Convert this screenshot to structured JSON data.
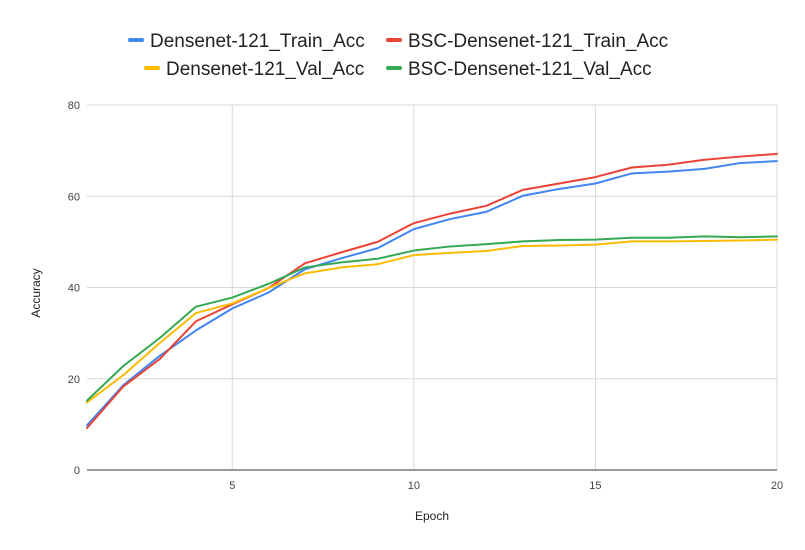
{
  "chart_data": {
    "type": "line",
    "title": "",
    "xlabel": "Epoch",
    "ylabel": "Accuracy",
    "x": [
      1,
      2,
      3,
      4,
      5,
      6,
      7,
      8,
      9,
      10,
      11,
      12,
      13,
      14,
      15,
      16,
      17,
      18,
      19,
      20
    ],
    "xlim": [
      1,
      20
    ],
    "ylim": [
      0,
      80
    ],
    "xticks": [
      5,
      10,
      15,
      20
    ],
    "yticks": [
      0,
      20,
      40,
      60,
      80
    ],
    "grid": true,
    "legend_position": "top",
    "series": [
      {
        "name": "Densenet-121_Train_Acc",
        "color": "#4285f4",
        "values": [
          9.8,
          18.6,
          25.0,
          30.6,
          35.4,
          38.9,
          44.0,
          46.4,
          48.6,
          52.8,
          55.0,
          56.6,
          60.1,
          61.6,
          62.8,
          65.0,
          65.4,
          66.0,
          67.3,
          67.7
        ]
      },
      {
        "name": "BSC-Densenet-121_Train_Acc",
        "color": "#ea4335",
        "values": [
          9.2,
          18.3,
          24.3,
          32.6,
          36.3,
          39.9,
          45.3,
          47.7,
          50.0,
          54.1,
          56.2,
          57.9,
          61.4,
          62.8,
          64.2,
          66.3,
          66.9,
          68.0,
          68.7,
          69.3
        ]
      },
      {
        "name": "Densenet-121_Val_Acc",
        "color": "#fbbc04",
        "values": [
          14.8,
          20.8,
          27.8,
          34.4,
          36.5,
          39.9,
          43.1,
          44.4,
          45.1,
          47.1,
          47.6,
          48.0,
          49.1,
          49.2,
          49.4,
          50.1,
          50.1,
          50.2,
          50.3,
          50.5
        ]
      },
      {
        "name": "BSC-Densenet-121_Val_Acc",
        "color": "#34a853",
        "values": [
          15.2,
          22.8,
          28.9,
          35.8,
          37.8,
          40.8,
          44.4,
          45.5,
          46.3,
          48.1,
          49.0,
          49.5,
          50.1,
          50.4,
          50.5,
          50.9,
          50.9,
          51.2,
          51.0,
          51.2
        ]
      }
    ],
    "legend_rows": [
      [
        0,
        1
      ],
      [
        2,
        3
      ]
    ]
  }
}
